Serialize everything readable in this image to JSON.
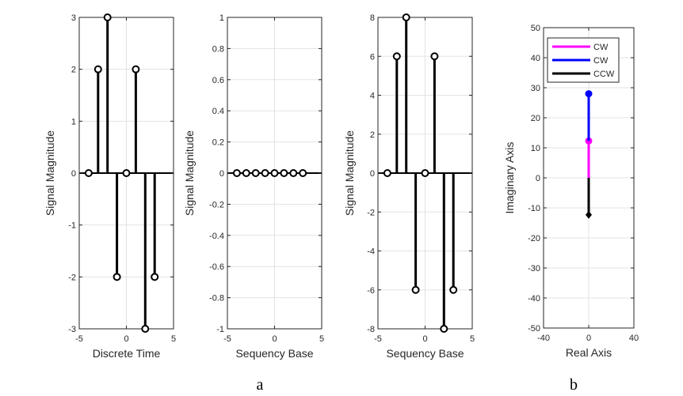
{
  "figure": {
    "captions": [
      "a",
      "b"
    ]
  },
  "chart_data": [
    {
      "type": "stem",
      "xlabel": "Discrete Time",
      "ylabel": "Signal Magnitude",
      "xlim": [
        -5,
        5
      ],
      "ylim": [
        -3,
        3
      ],
      "xticks": [
        "-5",
        "0",
        "5"
      ],
      "yticks": [
        "-3",
        "-2",
        "-1",
        "0",
        "1",
        "2",
        "3"
      ],
      "grid": true,
      "series": [
        {
          "x": [
            -4,
            -3,
            -2,
            -1,
            0,
            1,
            2,
            3
          ],
          "values": [
            0,
            2,
            3,
            -2,
            0,
            2,
            -3,
            -2
          ],
          "color": "#000000"
        }
      ]
    },
    {
      "type": "stem",
      "xlabel": "Sequency Base",
      "ylabel": "Signal Magnitude",
      "xlim": [
        -5,
        5
      ],
      "ylim": [
        -1,
        1
      ],
      "xticks": [
        "-5",
        "0",
        "5"
      ],
      "yticks": [
        "-1",
        "-0.8",
        "-0.6",
        "-0.4",
        "-0.2",
        "0",
        "0.2",
        "0.4",
        "0.6",
        "0.8",
        "1"
      ],
      "grid": true,
      "series": [
        {
          "x": [
            -4,
            -3,
            -2,
            -1,
            0,
            1,
            2,
            3
          ],
          "values": [
            0,
            0,
            0,
            0,
            0,
            0,
            0,
            0
          ],
          "color": "#000000"
        }
      ]
    },
    {
      "type": "stem",
      "xlabel": "Sequency Base",
      "ylabel": "Signal Magnitude",
      "xlim": [
        -5,
        5
      ],
      "ylim": [
        -8,
        8
      ],
      "xticks": [
        "-5",
        "0",
        "5"
      ],
      "yticks": [
        "-8",
        "-6",
        "-4",
        "-2",
        "0",
        "2",
        "4",
        "6",
        "8"
      ],
      "grid": true,
      "series": [
        {
          "x": [
            -4,
            -3,
            -2,
            -1,
            0,
            1,
            2,
            3
          ],
          "values": [
            0,
            6,
            8,
            -6,
            0,
            6,
            -8,
            -6
          ],
          "color": "#000000"
        }
      ]
    },
    {
      "type": "line",
      "xlabel": "Real Axis",
      "ylabel": "Imaginary Axis",
      "xlim": [
        -40,
        40
      ],
      "ylim": [
        -50,
        50
      ],
      "xticks": [
        "-40",
        "0",
        "40"
      ],
      "yticks": [
        "-50",
        "-40",
        "-30",
        "-20",
        "-10",
        "0",
        "10",
        "20",
        "30",
        "40",
        "50"
      ],
      "grid": true,
      "legend_position": "top-left",
      "series": [
        {
          "name": "CW",
          "color": "#ff00ff",
          "points": [
            [
              0,
              0
            ],
            [
              0,
              12.3
            ]
          ],
          "marker": "circle",
          "marker_at": [
            0,
            12.3
          ]
        },
        {
          "name": "CW",
          "color": "#0000ff",
          "points": [
            [
              0,
              12.3
            ],
            [
              0,
              28
            ]
          ],
          "marker": "circle",
          "marker_at": [
            0,
            28
          ]
        },
        {
          "name": "CCW",
          "color": "#000000",
          "points": [
            [
              0,
              0
            ],
            [
              0,
              -12.3
            ]
          ],
          "marker": "diamond",
          "marker_at": [
            0,
            -12.3
          ]
        }
      ]
    }
  ]
}
